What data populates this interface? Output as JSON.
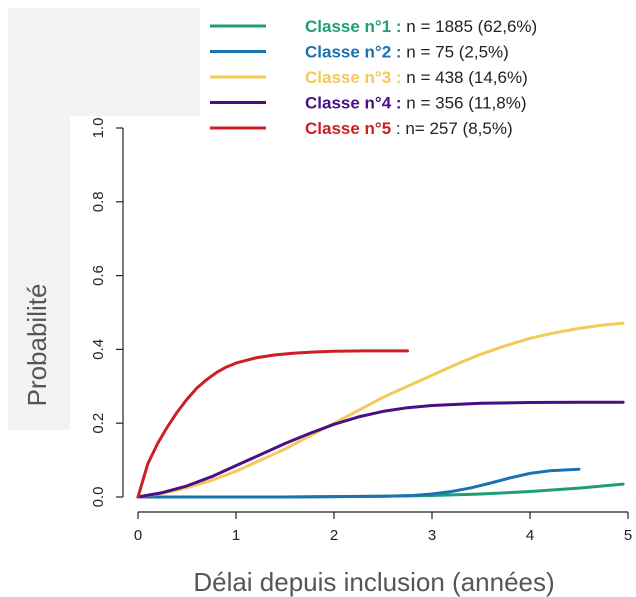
{
  "chart_data": {
    "type": "line",
    "xlabel": "Délai depuis inclusion (années)",
    "ylabel": "Probabilité",
    "xlim": [
      0,
      5
    ],
    "ylim": [
      0,
      1
    ],
    "xticks": [
      0,
      1,
      2,
      3,
      4,
      5
    ],
    "xtick_labels": [
      "0",
      "1",
      "2",
      "3",
      "4",
      "5"
    ],
    "yticks": [
      0,
      0.2,
      0.4,
      0.6,
      0.8,
      1.0
    ],
    "ytick_labels": [
      "0.0",
      "0.2",
      "0.4",
      "0.6",
      "0.8",
      "1.0"
    ],
    "grid": false,
    "legend_position": "top-right",
    "series": [
      {
        "name": "Classe n°1",
        "legend_bold": "Classe n°1 :",
        "legend_rest": " n = 1885 (62,6%)",
        "color": "#1f9e74",
        "x": [
          0,
          0.5,
          1,
          1.5,
          2,
          2.5,
          3,
          3.5,
          4,
          4.5,
          4.95
        ],
        "y": [
          0,
          0,
          0,
          0,
          0.001,
          0.002,
          0.004,
          0.008,
          0.015,
          0.024,
          0.035
        ]
      },
      {
        "name": "Classe n°2",
        "legend_bold": "Classe n°2 :",
        "legend_rest": " n = 75 (2,5%)",
        "color": "#1a73b0",
        "x": [
          0,
          0.5,
          1,
          1.5,
          2,
          2.5,
          2.8,
          3,
          3.2,
          3.4,
          3.6,
          3.8,
          4,
          4.2,
          4.4,
          4.5
        ],
        "y": [
          0,
          0,
          0,
          0,
          0.001,
          0.002,
          0.004,
          0.008,
          0.015,
          0.025,
          0.038,
          0.052,
          0.064,
          0.071,
          0.074,
          0.075
        ]
      },
      {
        "name": "Classe n°3",
        "legend_bold": "Classe n°3 :",
        "legend_rest": " n = 438 (14,6%)",
        "color": "#f5c85a",
        "x": [
          0,
          0.25,
          0.5,
          0.75,
          1,
          1.25,
          1.5,
          1.75,
          2,
          2.25,
          2.5,
          2.75,
          3,
          3.25,
          3.5,
          3.75,
          4,
          4.25,
          4.5,
          4.75,
          4.95
        ],
        "y": [
          0,
          0.01,
          0.025,
          0.045,
          0.07,
          0.1,
          0.13,
          0.165,
          0.2,
          0.235,
          0.27,
          0.3,
          0.33,
          0.36,
          0.387,
          0.41,
          0.43,
          0.445,
          0.457,
          0.466,
          0.471
        ]
      },
      {
        "name": "Classe n°4",
        "legend_bold": "Classe n°4 :",
        "legend_rest": " n = 356 (11,8%)",
        "color": "#4a0f87",
        "x": [
          0,
          0.25,
          0.5,
          0.75,
          1,
          1.25,
          1.5,
          1.75,
          2,
          2.25,
          2.5,
          2.75,
          3,
          3.5,
          4,
          4.5,
          4.95
        ],
        "y": [
          0,
          0.012,
          0.03,
          0.055,
          0.085,
          0.115,
          0.145,
          0.172,
          0.197,
          0.217,
          0.232,
          0.242,
          0.248,
          0.254,
          0.256,
          0.257,
          0.257
        ]
      },
      {
        "name": "Classe n°5",
        "legend_bold": "Classe n°5",
        "legend_rest": " : n= 257 (8,5%)",
        "color": "#cc1f24",
        "x": [
          0,
          0.05,
          0.1,
          0.2,
          0.3,
          0.4,
          0.5,
          0.6,
          0.7,
          0.8,
          0.9,
          1,
          1.2,
          1.4,
          1.6,
          1.8,
          2,
          2.3,
          2.5,
          2.75
        ],
        "y": [
          0,
          0.045,
          0.09,
          0.145,
          0.19,
          0.23,
          0.265,
          0.295,
          0.318,
          0.337,
          0.352,
          0.363,
          0.377,
          0.385,
          0.39,
          0.393,
          0.395,
          0.396,
          0.396,
          0.396
        ]
      }
    ]
  }
}
